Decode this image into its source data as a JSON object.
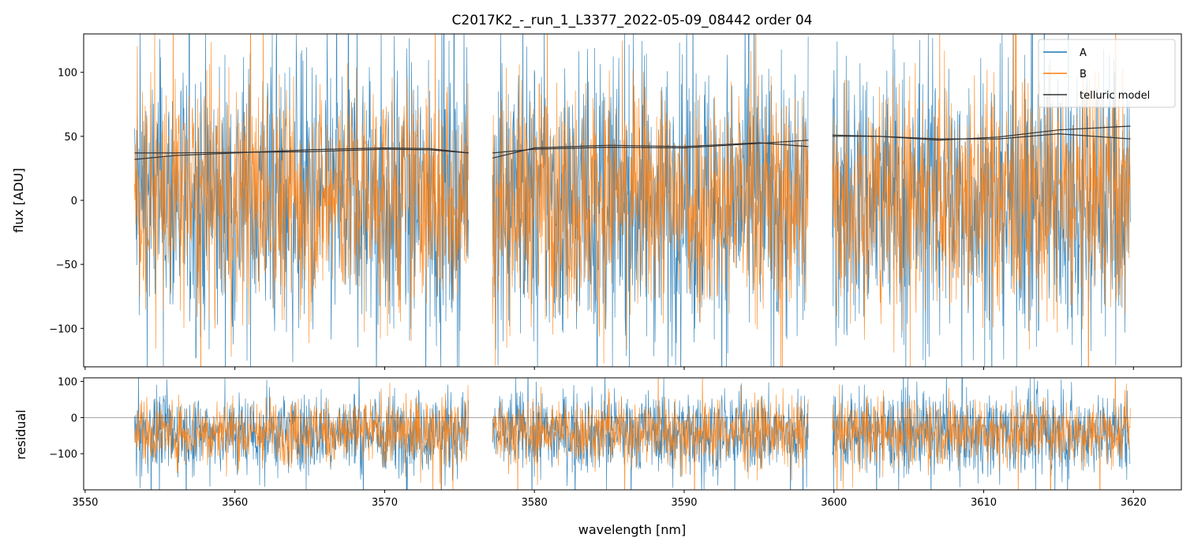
{
  "chart_data": [
    {
      "panel": "flux",
      "type": "line",
      "title": "C2017K2_-_run_1_L3377_2022-05-09_08442  order 04",
      "xlabel": "",
      "ylabel": "flux [ADU]",
      "xlim": [
        3549.9,
        3623.2
      ],
      "ylim": [
        -130,
        130
      ],
      "yticks": [
        -100,
        -50,
        0,
        50,
        100
      ],
      "yticklabels": [
        "−100",
        "−50",
        "0",
        "50",
        "100"
      ],
      "xticks": [
        3550,
        3560,
        3570,
        3580,
        3590,
        3600,
        3610,
        3620
      ],
      "legend": {
        "placement": "top-right",
        "entries": [
          "A",
          "B",
          "telluric model"
        ]
      },
      "segments": [
        {
          "x_start": 3553.3,
          "x_end": 3575.6
        },
        {
          "x_start": 3577.2,
          "x_end": 3598.3
        },
        {
          "x_start": 3599.9,
          "x_end": 3619.8
        }
      ],
      "series": [
        {
          "name": "A",
          "color": "#1f77b4",
          "noise_sigma": 55,
          "center": 0
        },
        {
          "name": "B",
          "color": "#ff7f0e",
          "noise_sigma": 45,
          "center": 2
        },
        {
          "name": "telluric model",
          "color": "#333333",
          "curves": [
            {
              "x": [
                3553.3,
                3556,
                3560,
                3565,
                3570,
                3573,
                3575.6
              ],
              "y": [
                37,
                37,
                37.5,
                38,
                40,
                39.5,
                37
              ]
            },
            {
              "x": [
                3553.3,
                3556,
                3560,
                3565,
                3570,
                3573,
                3575.6
              ],
              "y": [
                32,
                35,
                37,
                39.5,
                41,
                40.5,
                37
              ]
            },
            {
              "x": [
                3577.2,
                3580,
                3585,
                3590,
                3595,
                3598.3
              ],
              "y": [
                37,
                40,
                41.5,
                41,
                44.5,
                47
              ]
            },
            {
              "x": [
                3577.2,
                3580,
                3585,
                3590,
                3595,
                3598.3
              ],
              "y": [
                33,
                41,
                43,
                42,
                45,
                42
              ]
            },
            {
              "x": [
                3599.9,
                3603,
                3607,
                3611,
                3615,
                3619.8
              ],
              "y": [
                50,
                50,
                48,
                48,
                52,
                48
              ]
            },
            {
              "x": [
                3599.9,
                3603,
                3607,
                3611,
                3615,
                3619.8
              ],
              "y": [
                51,
                50,
                47,
                49.5,
                55,
                58
              ]
            }
          ]
        }
      ]
    },
    {
      "panel": "residual",
      "type": "line",
      "title": "",
      "xlabel": "wavelength [nm]",
      "ylabel": "residual",
      "xlim": [
        3549.9,
        3623.2
      ],
      "ylim": [
        -200,
        110
      ],
      "yticks": [
        -100,
        0,
        100
      ],
      "yticklabels": [
        "−100",
        "0",
        "100"
      ],
      "xticks": [
        3550,
        3560,
        3570,
        3580,
        3590,
        3600,
        3610,
        3620
      ],
      "xticklabels": [
        "3550",
        "3560",
        "3570",
        "3580",
        "3590",
        "3600",
        "3610",
        "3620"
      ],
      "zero_line": 0,
      "series": [
        {
          "name": "A",
          "color": "#1f77b4",
          "noise_sigma": 55,
          "center": -40
        },
        {
          "name": "B",
          "color": "#ff7f0e",
          "noise_sigma": 45,
          "center": -38
        }
      ]
    }
  ]
}
